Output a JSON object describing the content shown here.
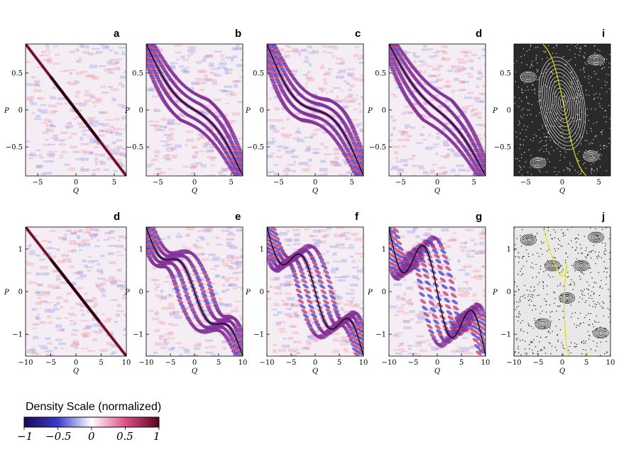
{
  "figure": {
    "colorbar": {
      "title": "Density Scale (normalized)",
      "ticks": [
        "−1",
        "−0.5",
        "0",
        "0.5",
        "1"
      ],
      "colors": [
        "#1a0a55",
        "#3a3acc",
        "#ffffff",
        "#e0508a",
        "#5a0020"
      ]
    },
    "rows": [
      {
        "xlabel": "Q",
        "ylabel": "P",
        "xlim": [
          -6.5,
          6.5
        ],
        "ylim": [
          -0.9,
          0.9
        ],
        "xticks": [
          "−5",
          "0",
          "5"
        ],
        "yticks": [
          "0.5",
          "0",
          "−0.5"
        ],
        "panels": [
          {
            "label": "a",
            "kind": "wigner",
            "curve": "line",
            "amp": 0
          },
          {
            "label": "b",
            "kind": "wigner",
            "curve": "s",
            "amp": 0.35
          },
          {
            "label": "c",
            "kind": "wigner",
            "curve": "s",
            "amp": 0.5
          },
          {
            "label": "d",
            "kind": "wigner",
            "curve": "s",
            "amp": 0.25
          },
          {
            "label": "i",
            "kind": "poincare"
          }
        ]
      },
      {
        "xlabel": "Q",
        "ylabel": "P",
        "xlim": [
          -10,
          10
        ],
        "ylim": [
          -1.5,
          1.5
        ],
        "xticks": [
          "−10",
          "−5",
          "0",
          "5",
          "10"
        ],
        "yticks": [
          "1",
          "0",
          "−1"
        ],
        "panels": [
          {
            "label": "d",
            "kind": "wigner",
            "curve": "line",
            "amp": 0
          },
          {
            "label": "e",
            "kind": "wigner",
            "curve": "wave",
            "amp": 0.5
          },
          {
            "label": "f",
            "kind": "wigner",
            "curve": "wave",
            "amp": 0.8
          },
          {
            "label": "g",
            "kind": "wigner",
            "curve": "wave",
            "amp": 1.2
          },
          {
            "label": "j",
            "kind": "poincare"
          }
        ]
      }
    ]
  }
}
